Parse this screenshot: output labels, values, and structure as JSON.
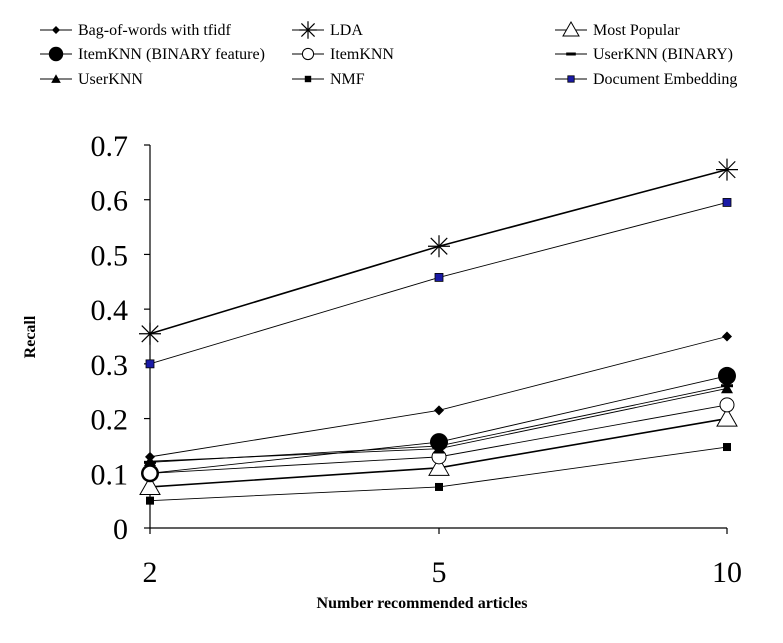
{
  "chart_data": {
    "type": "line",
    "xlabel": "Number recommended articles",
    "ylabel": "Recall",
    "categories": [
      "2",
      "5",
      "10"
    ],
    "ylim": [
      0,
      0.7
    ],
    "yticks": [
      "0",
      "0.1",
      "0.2",
      "0.3",
      "0.4",
      "0.5",
      "0.6",
      "0.7"
    ],
    "grid": false,
    "legend_position": "top",
    "series": [
      {
        "name": "Bag-of-words with tfidf",
        "marker": "diamond",
        "color": "#000000",
        "values": [
          0.13,
          0.215,
          0.35
        ]
      },
      {
        "name": "LDA",
        "marker": "asterisk",
        "color": "#000000",
        "values": [
          0.355,
          0.515,
          0.655
        ]
      },
      {
        "name": "Most Popular",
        "marker": "open-triangle",
        "color": "#000000",
        "values": [
          0.075,
          0.11,
          0.2
        ]
      },
      {
        "name": "ItemKNN (BINARY feature)",
        "marker": "filled-circle",
        "color": "#000000",
        "values": [
          0.1,
          0.157,
          0.278
        ]
      },
      {
        "name": "ItemKNN",
        "marker": "open-circle",
        "color": "#000000",
        "values": [
          0.1,
          0.13,
          0.225
        ]
      },
      {
        "name": "UserKNN (BINARY)",
        "marker": "dash",
        "color": "#000000",
        "values": [
          0.12,
          0.15,
          0.26
        ]
      },
      {
        "name": "UserKNN",
        "marker": "filled-triangle",
        "color": "#000000",
        "values": [
          0.122,
          0.145,
          0.255
        ]
      },
      {
        "name": "NMF",
        "marker": "square",
        "color": "#000000",
        "values": [
          0.05,
          0.075,
          0.148
        ]
      },
      {
        "name": "Document Embedding",
        "marker": "blue-square",
        "color": "#1a1aa6",
        "values": [
          0.3,
          0.458,
          0.595
        ]
      }
    ]
  }
}
